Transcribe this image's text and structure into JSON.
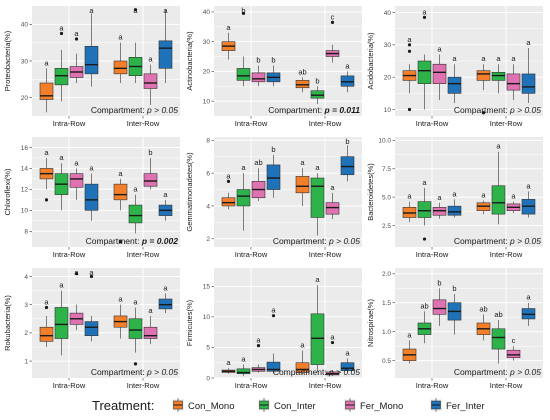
{
  "colors": {
    "panel_bg": "#ebebeb",
    "grid": "#ffffff",
    "Con_Mono": "#f47f2b",
    "Con_Inter": "#2db34a",
    "Fer_Mono": "#df72b0",
    "Fer_Inter": "#1f72b7"
  },
  "legend": {
    "title": "Treatment:",
    "items": [
      {
        "label": "Con_Mono",
        "color": "#f47f2b"
      },
      {
        "label": "Con_Inter",
        "color": "#2db34a"
      },
      {
        "label": "Fer_Mono",
        "color": "#df72b0"
      },
      {
        "label": "Fer_Inter",
        "color": "#1f72b7"
      }
    ]
  },
  "chart_data": [
    {
      "type": "boxplot",
      "ylabel": "Proteobacteria(%)",
      "ylim": [
        15,
        45
      ],
      "yticks": [
        20,
        30,
        40
      ],
      "categories": [
        "Intra-Row",
        "Inter-Row"
      ],
      "annotation": {
        "prefix": "Compartment: ",
        "value": "p > 0.05",
        "bold": false
      },
      "boxes": [
        [
          {
            "min": 16,
            "q1": 19.5,
            "med": 20.5,
            "q3": 24,
            "max": 28,
            "out": [],
            "sig": "a"
          },
          {
            "min": 19,
            "q1": 23.5,
            "med": 26,
            "q3": 28,
            "max": 33,
            "out": [
              37.5
            ],
            "sig": "a"
          },
          {
            "min": 24,
            "q1": 25.5,
            "med": 27,
            "q3": 28.5,
            "max": 32,
            "out": [
              36
            ],
            "sig": "a"
          },
          {
            "min": 23,
            "q1": 26.5,
            "med": 29,
            "q3": 34,
            "max": 43,
            "out": [],
            "sig": "a"
          }
        ],
        [
          {
            "min": 24,
            "q1": 26.5,
            "med": 28,
            "q3": 30,
            "max": 35,
            "out": [],
            "sig": "a"
          },
          {
            "min": 24,
            "q1": 26,
            "med": 28.5,
            "q3": 31,
            "max": 35,
            "out": [
              44
            ],
            "sig": "a"
          },
          {
            "min": 18,
            "q1": 22.5,
            "med": 24,
            "q3": 26.5,
            "max": 29,
            "out": [],
            "sig": "a"
          },
          {
            "min": 24,
            "q1": 28,
            "med": 33.5,
            "q3": 35.5,
            "max": 44,
            "out": [],
            "sig": "a"
          }
        ]
      ]
    },
    {
      "type": "boxplot",
      "ylabel": "Actinobacteria(%)",
      "ylim": [
        5,
        42
      ],
      "yticks": [
        10,
        20,
        30,
        40
      ],
      "categories": [
        "Intra-Row",
        "Inter-Row"
      ],
      "annotation": {
        "prefix": "Compartment: ",
        "value": "p = 0.011",
        "bold": true
      },
      "boxes": [
        [
          {
            "min": 24,
            "q1": 27,
            "med": 28.5,
            "q3": 30,
            "max": 33,
            "out": [],
            "sig": "a"
          },
          {
            "min": 15,
            "q1": 17,
            "med": 18.5,
            "q3": 21,
            "max": 25,
            "out": [
              39.5
            ],
            "sig": "b"
          },
          {
            "min": 15,
            "q1": 16.5,
            "med": 17.5,
            "q3": 19.5,
            "max": 22,
            "out": [],
            "sig": "b"
          },
          {
            "min": 15,
            "q1": 16.5,
            "med": 18,
            "q3": 19.5,
            "max": 22,
            "out": [],
            "sig": "b"
          }
        ],
        [
          {
            "min": 13,
            "q1": 14.5,
            "med": 15.5,
            "q3": 17,
            "max": 18,
            "out": [],
            "sig": "ab"
          },
          {
            "min": 9,
            "q1": 11,
            "med": 12,
            "q3": 13.5,
            "max": 15,
            "out": [],
            "sig": "b"
          },
          {
            "min": 23,
            "q1": 25,
            "med": 26,
            "q3": 27,
            "max": 29,
            "out": [
              36.5
            ],
            "sig": "c"
          },
          {
            "min": 13,
            "q1": 15,
            "med": 16.5,
            "q3": 18.5,
            "max": 20,
            "out": [],
            "sig": "a"
          }
        ]
      ]
    },
    {
      "type": "boxplot",
      "ylabel": "Acidobacteria(%)",
      "ylim": [
        8,
        42
      ],
      "yticks": [
        10,
        20,
        30,
        40
      ],
      "categories": [
        "Intra-Row",
        "Inter-Row"
      ],
      "annotation": {
        "prefix": "Compartment: ",
        "value": "p > 0.05",
        "bold": false
      },
      "boxes": [
        [
          {
            "min": 15,
            "q1": 19,
            "med": 20.5,
            "q3": 22,
            "max": 24,
            "out": [
              10,
              28,
              30
            ],
            "sig": "a"
          },
          {
            "min": 10,
            "q1": 18,
            "med": 22,
            "q3": 25,
            "max": 27,
            "out": [
              38.5
            ],
            "sig": "a"
          },
          {
            "min": 13,
            "q1": 18,
            "med": 21.5,
            "q3": 24,
            "max": 27,
            "out": [],
            "sig": "a"
          },
          {
            "min": 12,
            "q1": 15,
            "med": 18,
            "q3": 20,
            "max": 24,
            "out": [],
            "sig": "a"
          }
        ],
        [
          {
            "min": 16,
            "q1": 19,
            "med": 21,
            "q3": 22,
            "max": 24,
            "out": [
              9
            ],
            "sig": "a"
          },
          {
            "min": 15,
            "q1": 19,
            "med": 20.5,
            "q3": 21.5,
            "max": 24,
            "out": [],
            "sig": "a"
          },
          {
            "min": 13,
            "q1": 16,
            "med": 18,
            "q3": 21,
            "max": 24,
            "out": [],
            "sig": "a"
          },
          {
            "min": 12,
            "q1": 15,
            "med": 17,
            "q3": 21,
            "max": 29,
            "out": [],
            "sig": "a"
          }
        ]
      ]
    },
    {
      "type": "boxplot",
      "ylabel": "Chloroflexi(%)",
      "ylim": [
        6.5,
        17
      ],
      "yticks": [
        8,
        10,
        12,
        14,
        16
      ],
      "categories": [
        "Intra-Row",
        "Inter-Row"
      ],
      "annotation": {
        "prefix": "Compartment: ",
        "value": "p = 0.002",
        "bold": true
      },
      "boxes": [
        [
          {
            "min": 12,
            "q1": 13,
            "med": 13.5,
            "q3": 14,
            "max": 15,
            "out": [
              11
            ],
            "sig": "a"
          },
          {
            "min": 10,
            "q1": 11.5,
            "med": 12.5,
            "q3": 13.5,
            "max": 14.5,
            "out": [],
            "sig": "a"
          },
          {
            "min": 11,
            "q1": 12.2,
            "med": 13,
            "q3": 13.5,
            "max": 14,
            "out": [],
            "sig": "a"
          },
          {
            "min": 9,
            "q1": 10,
            "med": 11,
            "q3": 12.5,
            "max": 13.5,
            "out": [],
            "sig": "a"
          }
        ],
        [
          {
            "min": 10,
            "q1": 11,
            "med": 11.5,
            "q3": 12.5,
            "max": 13,
            "out": [
              7
            ],
            "sig": "a"
          },
          {
            "min": 7.8,
            "q1": 8.8,
            "med": 9.5,
            "q3": 10.5,
            "max": 11.5,
            "out": [],
            "sig": "a"
          },
          {
            "min": 12,
            "q1": 12.3,
            "med": 12.8,
            "q3": 13.5,
            "max": 15,
            "out": [],
            "sig": "b"
          },
          {
            "min": 9,
            "q1": 9.5,
            "med": 10,
            "q3": 10.5,
            "max": 11,
            "out": [],
            "sig": "a"
          }
        ]
      ]
    },
    {
      "type": "boxplot",
      "ylabel": "Gemmatimonadetes(%)",
      "ylim": [
        1.5,
        8.2
      ],
      "yticks": [
        2,
        4,
        6,
        8
      ],
      "categories": [
        "Intra-Row",
        "Inter-Row"
      ],
      "annotation": {
        "prefix": "Compartment: ",
        "value": "p > 0.05",
        "bold": false
      },
      "boxes": [
        [
          {
            "min": 3.8,
            "q1": 4,
            "med": 4.2,
            "q3": 4.5,
            "max": 4.8,
            "out": [
              5.5
            ],
            "sig": "a"
          },
          {
            "min": 2.5,
            "q1": 4,
            "med": 4.6,
            "q3": 5,
            "max": 6,
            "out": [],
            "sig": "a"
          },
          {
            "min": 4.3,
            "q1": 4.5,
            "med": 5,
            "q3": 5.5,
            "max": 6.3,
            "out": [],
            "sig": "ab"
          },
          {
            "min": 4.5,
            "q1": 5,
            "med": 5.7,
            "q3": 6.5,
            "max": 7.1,
            "out": [],
            "sig": "b"
          }
        ],
        [
          {
            "min": 4,
            "q1": 4.8,
            "med": 5.2,
            "q3": 5.8,
            "max": 6.3,
            "out": [],
            "sig": "a"
          },
          {
            "min": 2.2,
            "q1": 3.3,
            "med": 5.2,
            "q3": 5.7,
            "max": 6,
            "out": [],
            "sig": "a"
          },
          {
            "min": 3.2,
            "q1": 3.5,
            "med": 3.9,
            "q3": 4.2,
            "max": 4.8,
            "out": [],
            "sig": "a"
          },
          {
            "min": 5.5,
            "q1": 5.9,
            "med": 6.4,
            "q3": 7,
            "max": 7.7,
            "out": [],
            "sig": "b"
          }
        ]
      ]
    },
    {
      "type": "boxplot",
      "ylabel": "Bacteroidetes(%)",
      "ylim": [
        0.6,
        10.3
      ],
      "yticks": [
        2.5,
        5.0,
        7.5,
        10.0
      ],
      "categories": [
        "Intra-Row",
        "Inter-Row"
      ],
      "annotation": {
        "prefix": "Compartment: ",
        "value": "p > 0.05",
        "bold": false
      },
      "boxes": [
        [
          {
            "min": 2.8,
            "q1": 3.2,
            "med": 3.6,
            "q3": 4.1,
            "max": 4.6,
            "out": [],
            "sig": "a"
          },
          {
            "min": 2.5,
            "q1": 3.2,
            "med": 3.8,
            "q3": 4.6,
            "max": 5.8,
            "out": [
              1.3
            ],
            "sig": "a"
          },
          {
            "min": 3.1,
            "q1": 3.4,
            "med": 3.8,
            "q3": 4.1,
            "max": 4.5,
            "out": [],
            "sig": "a"
          },
          {
            "min": 3.2,
            "q1": 3.4,
            "med": 3.7,
            "q3": 4.2,
            "max": 4.8,
            "out": [],
            "sig": "a"
          }
        ],
        [
          {
            "min": 3.5,
            "q1": 3.8,
            "med": 4.2,
            "q3": 4.5,
            "max": 4.7,
            "out": [],
            "sig": "a"
          },
          {
            "min": 2.6,
            "q1": 3.5,
            "med": 4.5,
            "q3": 6,
            "max": 9,
            "out": [],
            "sig": "a"
          },
          {
            "min": 3.6,
            "q1": 3.8,
            "med": 4.1,
            "q3": 4.4,
            "max": 4.6,
            "out": [],
            "sig": "a"
          },
          {
            "min": 3.2,
            "q1": 3.5,
            "med": 4.2,
            "q3": 4.8,
            "max": 5.5,
            "out": [],
            "sig": "a"
          }
        ]
      ]
    },
    {
      "type": "boxplot",
      "ylabel": "Rokubacteria(%)",
      "ylim": [
        0.4,
        4.3
      ],
      "yticks": [
        1,
        2,
        3,
        4
      ],
      "categories": [
        "Intra-Row",
        "Inter-Row"
      ],
      "annotation": {
        "prefix": "Compartment: ",
        "value": "p > 0.05",
        "bold": false
      },
      "boxes": [
        [
          {
            "min": 1.5,
            "q1": 1.7,
            "med": 1.9,
            "q3": 2.2,
            "max": 2.6,
            "out": [
              2.9
            ],
            "sig": "a"
          },
          {
            "min": 1.2,
            "q1": 1.8,
            "med": 2.3,
            "q3": 2.9,
            "max": 3.5,
            "out": [],
            "sig": "a"
          },
          {
            "min": 2.1,
            "q1": 2.3,
            "med": 2.5,
            "q3": 2.7,
            "max": 3,
            "out": [
              4.1
            ],
            "sig": "a"
          },
          {
            "min": 1.7,
            "q1": 1.9,
            "med": 2.2,
            "q3": 2.4,
            "max": 2.6,
            "out": [
              4.0
            ],
            "sig": "a"
          }
        ],
        [
          {
            "min": 1.8,
            "q1": 2.2,
            "med": 2.4,
            "q3": 2.6,
            "max": 3,
            "out": [],
            "sig": "a"
          },
          {
            "min": 1.3,
            "q1": 1.8,
            "med": 2.1,
            "q3": 2.5,
            "max": 2.9,
            "out": [
              0.9
            ],
            "sig": "a"
          },
          {
            "min": 1.6,
            "q1": 1.8,
            "med": 1.9,
            "q3": 2.2,
            "max": 2.6,
            "out": [],
            "sig": "a"
          },
          {
            "min": 2.7,
            "q1": 2.85,
            "med": 3,
            "q3": 3.2,
            "max": 3.4,
            "out": [],
            "sig": "a"
          }
        ]
      ]
    },
    {
      "type": "boxplot",
      "ylabel": "Firmicutes(%)",
      "ylim": [
        0,
        18
      ],
      "yticks": [
        0,
        5,
        10,
        15
      ],
      "categories": [
        "Intra-Row",
        "Inter-Row"
      ],
      "annotation": {
        "prefix": "Compartment: ",
        "value": "p > 0.05",
        "bold": false
      },
      "boxes": [
        [
          {
            "min": 0.7,
            "q1": 0.9,
            "med": 1.1,
            "q3": 1.3,
            "max": 1.6,
            "out": [],
            "sig": "a"
          },
          {
            "min": 0.3,
            "q1": 0.7,
            "med": 0.9,
            "q3": 1.5,
            "max": 2.2,
            "out": [],
            "sig": "a"
          },
          {
            "min": 0.9,
            "q1": 1.1,
            "med": 1.4,
            "q3": 1.7,
            "max": 2.2,
            "out": [
              5.3
            ],
            "sig": "a"
          },
          {
            "min": 0.8,
            "q1": 1.1,
            "med": 1.4,
            "q3": 2.6,
            "max": 4,
            "out": [
              10.2
            ],
            "sig": "a"
          }
        ],
        [
          {
            "min": 0.5,
            "q1": 0.9,
            "med": 1.4,
            "q3": 2.5,
            "max": 4.5,
            "out": [],
            "sig": "a"
          },
          {
            "min": 1,
            "q1": 2.2,
            "med": 6.5,
            "q3": 10.5,
            "max": 15.2,
            "out": [],
            "sig": "a"
          },
          {
            "min": 0.3,
            "q1": 0.5,
            "med": 0.7,
            "q3": 1,
            "max": 1.3,
            "out": [
              5.8
            ],
            "sig": "a"
          },
          {
            "min": 0.9,
            "q1": 1.2,
            "med": 1.6,
            "q3": 2.5,
            "max": 3.2,
            "out": [],
            "sig": "a"
          }
        ]
      ]
    },
    {
      "type": "boxplot",
      "ylabel": "Nitrospirae(%)",
      "ylim": [
        0.2,
        2.1
      ],
      "yticks": [
        0.5,
        1.0,
        1.5,
        2.0
      ],
      "categories": [
        "Intra-Row",
        "Inter-Row"
      ],
      "annotation": {
        "prefix": "Compartment: ",
        "value": "p > 0.05",
        "bold": false
      },
      "boxes": [
        [
          {
            "min": 0.45,
            "q1": 0.5,
            "med": 0.6,
            "q3": 0.7,
            "max": 0.85,
            "out": [],
            "sig": "a"
          },
          {
            "min": 0.8,
            "q1": 0.95,
            "med": 1.05,
            "q3": 1.15,
            "max": 1.35,
            "out": [],
            "sig": "ab"
          },
          {
            "min": 1.1,
            "q1": 1.3,
            "med": 1.4,
            "q3": 1.55,
            "max": 1.75,
            "out": [],
            "sig": "b"
          },
          {
            "min": 0.95,
            "q1": 1.2,
            "med": 1.35,
            "q3": 1.5,
            "max": 1.65,
            "out": [],
            "sig": "b"
          }
        ],
        [
          {
            "min": 0.85,
            "q1": 0.95,
            "med": 1.05,
            "q3": 1.15,
            "max": 1.3,
            "out": [],
            "sig": "ab"
          },
          {
            "min": 0.45,
            "q1": 0.7,
            "med": 0.9,
            "q3": 1.05,
            "max": 1.2,
            "out": [],
            "sig": "ab"
          },
          {
            "min": 0.5,
            "q1": 0.55,
            "med": 0.6,
            "q3": 0.68,
            "max": 0.75,
            "out": [],
            "sig": "c"
          },
          {
            "min": 1.1,
            "q1": 1.22,
            "med": 1.3,
            "q3": 1.4,
            "max": 1.5,
            "out": [],
            "sig": "a"
          }
        ]
      ]
    }
  ]
}
